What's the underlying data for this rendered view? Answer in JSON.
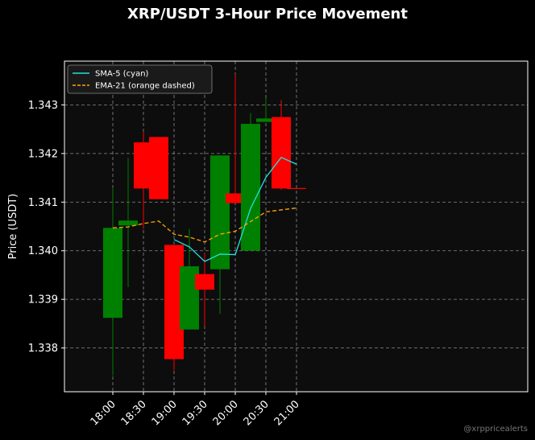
{
  "chart_data": {
    "type": "candlestick",
    "title": "XRP/USDT 3-Hour Price Movement",
    "xlabel": "",
    "ylabel": "Price (USDT)",
    "x": [
      "18:00",
      "18:15",
      "18:30",
      "18:45",
      "19:00",
      "19:15",
      "19:30",
      "19:45",
      "20:00",
      "20:15",
      "20:30",
      "20:45",
      "21:00"
    ],
    "xticks": [
      "18:00",
      "18:30",
      "19:00",
      "19:30",
      "20:00",
      "20:30",
      "21:00"
    ],
    "yticks": [
      1.338,
      1.339,
      1.34,
      1.341,
      1.342,
      1.343
    ],
    "ylim": [
      1.3371,
      1.3439
    ],
    "grid": true,
    "legend_position": "top-left",
    "candles": [
      {
        "time": "18:00",
        "open": 1.33862,
        "high": 1.34128,
        "low": 1.33743,
        "close": 1.34047
      },
      {
        "time": "18:15",
        "open": 1.34052,
        "high": 1.34191,
        "low": 1.33925,
        "close": 1.34062
      },
      {
        "time": "18:30",
        "open": 1.34223,
        "high": 1.34245,
        "low": 1.34045,
        "close": 1.34128
      },
      {
        "time": "18:45",
        "open": 1.34234,
        "high": 1.34234,
        "low": 1.34106,
        "close": 1.34106
      },
      {
        "time": "19:00",
        "open": 1.34012,
        "high": 1.34012,
        "low": 1.33754,
        "close": 1.33777
      },
      {
        "time": "19:15",
        "open": 1.33838,
        "high": 1.34045,
        "low": 1.33838,
        "close": 1.33968
      },
      {
        "time": "19:30",
        "open": 1.33952,
        "high": 1.33995,
        "low": 1.33845,
        "close": 1.3392
      },
      {
        "time": "19:45",
        "open": 1.33962,
        "high": 1.34196,
        "low": 1.3387,
        "close": 1.34196
      },
      {
        "time": "20:00",
        "open": 1.34118,
        "high": 1.34363,
        "low": 1.34098,
        "close": 1.34098
      },
      {
        "time": "20:15",
        "open": 1.34,
        "high": 1.34283,
        "low": 1.34,
        "close": 1.34261
      },
      {
        "time": "20:30",
        "open": 1.34265,
        "high": 1.34314,
        "low": 1.34265,
        "close": 1.34272
      },
      {
        "time": "20:45",
        "open": 1.34275,
        "high": 1.3431,
        "low": 1.34125,
        "close": 1.34128
      },
      {
        "time": "21:00",
        "open": 1.34129,
        "high": 1.34129,
        "low": 1.34127,
        "close": 1.34127
      }
    ],
    "series": [
      {
        "name": "SMA-5 (cyan)",
        "color": "#22e0e0",
        "style": "solid",
        "x": [
          "19:00",
          "19:15",
          "19:30",
          "19:45",
          "20:00",
          "20:15",
          "20:30",
          "20:45",
          "21:00"
        ],
        "values": [
          1.34023,
          1.34008,
          1.33978,
          1.33993,
          1.33992,
          1.34087,
          1.34151,
          1.34192,
          1.34178
        ]
      },
      {
        "name": "EMA-21 (orange dashed)",
        "color": "#ffa500",
        "style": "dashed",
        "x": [
          "18:00",
          "18:15",
          "18:30",
          "18:45",
          "19:00",
          "19:15",
          "19:30",
          "19:45",
          "20:00",
          "20:15",
          "20:30",
          "20:45",
          "21:00"
        ],
        "values": [
          1.34047,
          1.34049,
          1.34056,
          1.34061,
          1.34034,
          1.34028,
          1.34018,
          1.34034,
          1.3404,
          1.3406,
          1.3408,
          1.34084,
          1.34088
        ]
      }
    ],
    "colors": {
      "up": "#008000",
      "down": "#ff0000",
      "background": "#0d0d0d",
      "grid": "#aaaaaa"
    }
  },
  "watermark": "@xrppricealerts"
}
